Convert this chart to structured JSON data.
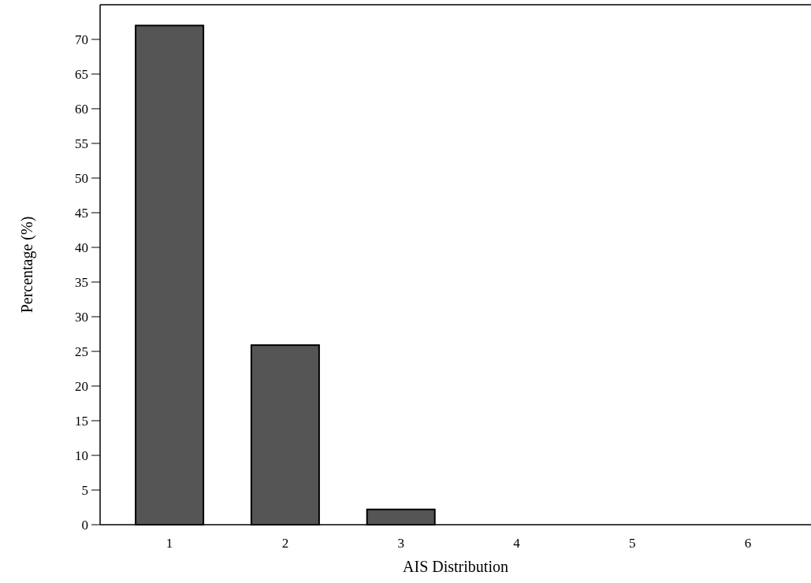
{
  "chart_data": {
    "type": "bar",
    "xlabel": "AIS Distribution",
    "ylabel": "Percentage (%)",
    "categories": [
      "1",
      "2",
      "3",
      "4",
      "5",
      "6"
    ],
    "values": [
      72,
      25.9,
      2.2,
      0,
      0,
      0
    ],
    "color": "#555555",
    "ylim": [
      0,
      75
    ],
    "yticks": [
      0,
      5,
      10,
      15,
      20,
      25,
      30,
      35,
      40,
      45,
      50,
      55,
      60,
      65,
      70
    ],
    "grid": false
  }
}
